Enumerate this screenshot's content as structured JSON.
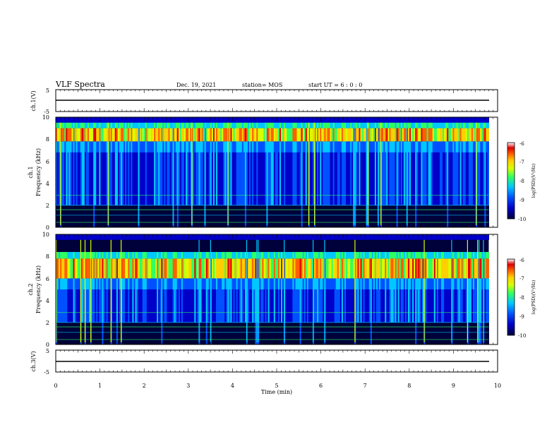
{
  "header": {
    "title": "VLF Spectra",
    "date": "Dec. 19, 2021",
    "station": "station= MOS",
    "start": "start  UT =   6 : 0  : 0"
  },
  "colors": {
    "spectrum_scale": [
      "#00003a",
      "#0000c8",
      "#0050ff",
      "#00c8ff",
      "#30ff60",
      "#d8ff00",
      "#ffd000",
      "#ff6000",
      "#e00000",
      "#ffffff"
    ]
  },
  "chart_data": [
    {
      "type": "line",
      "name": "ch1-waveform",
      "ylabel": "ch.1(V)",
      "ylim": [
        -5,
        5
      ],
      "yticks": [
        "5",
        "-5"
      ],
      "x": [
        0,
        10
      ],
      "y": [
        0,
        0
      ]
    },
    {
      "type": "heatmap",
      "name": "ch1-spectrogram",
      "ylabel": "ch.1\nFrequency (kHz)",
      "ylim": [
        0,
        10
      ],
      "yticks": [
        "0",
        "2",
        "4",
        "6",
        "8",
        "10"
      ],
      "xlim": [
        0,
        10
      ],
      "intense_band_khz": [
        7.8,
        9.0
      ],
      "colorbar": {
        "label": "log(PSD)(V²/Hz)",
        "ticks": [
          "-6",
          "-7",
          "-8",
          "-9",
          "-10"
        ],
        "range": [
          -10,
          -6
        ]
      }
    },
    {
      "type": "heatmap",
      "name": "ch2-spectrogram",
      "ylabel": "ch.2\nFrequency (kHz)",
      "ylim": [
        0,
        10
      ],
      "yticks": [
        "0",
        "2",
        "4",
        "6",
        "8",
        "10"
      ],
      "xlim": [
        0,
        10
      ],
      "intense_band_khz": [
        6.0,
        7.8
      ],
      "colorbar": {
        "label": "log(PSD)(V²/Hz)",
        "ticks": [
          "-6",
          "-7",
          "-8",
          "-9",
          "-10"
        ],
        "range": [
          -10,
          -6
        ]
      }
    },
    {
      "type": "line",
      "name": "ch3-waveform",
      "ylabel": "ch.3(V)",
      "ylim": [
        -5,
        5
      ],
      "yticks": [
        "5",
        "-5"
      ],
      "x": [
        0,
        10
      ],
      "y": [
        0,
        0
      ]
    }
  ],
  "xaxis": {
    "label": "Time (min)",
    "ticks": [
      "0",
      "1",
      "2",
      "3",
      "4",
      "5",
      "6",
      "7",
      "8",
      "9",
      "10"
    ]
  }
}
